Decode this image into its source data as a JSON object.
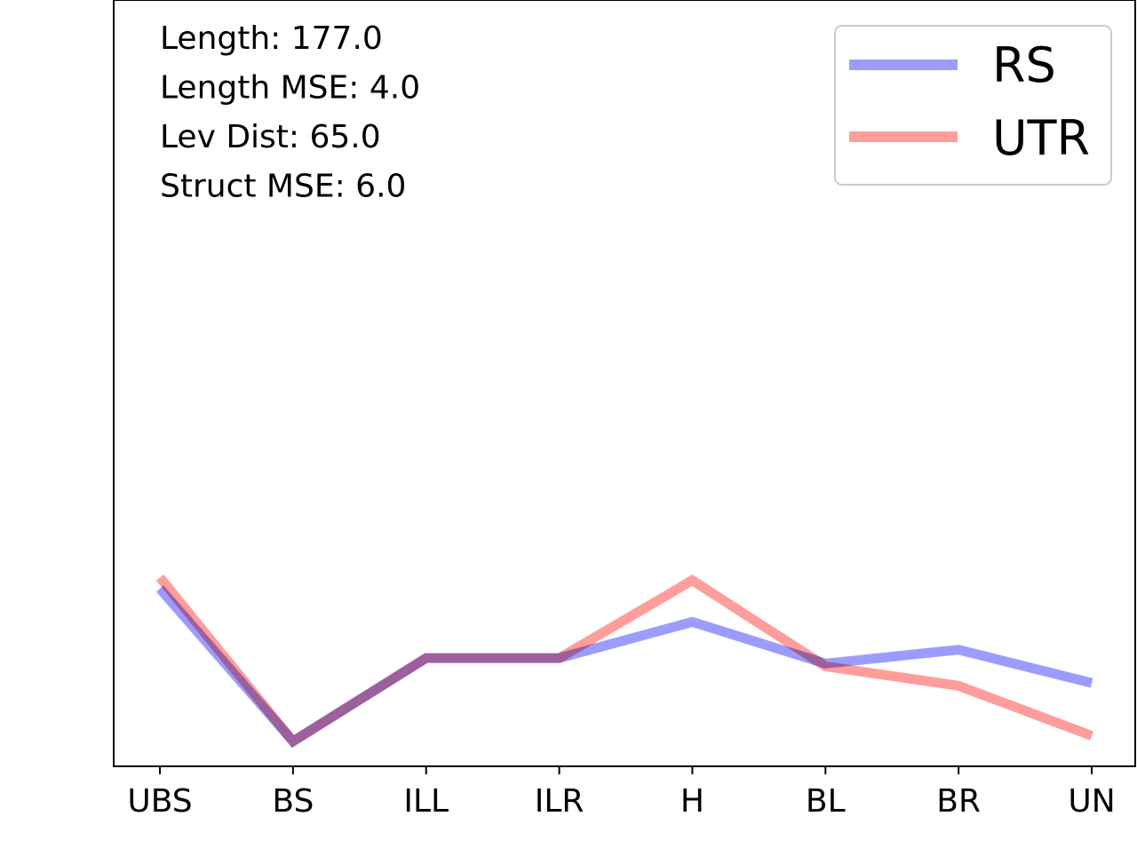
{
  "chart_data": {
    "type": "line",
    "categories": [
      "UBS",
      "BS",
      "ILL",
      "ILR",
      "H",
      "BL",
      "BR",
      "UN"
    ],
    "series": [
      {
        "name": "RS",
        "color": "#9999ff",
        "values": [
          5.5,
          0.0,
          3.0,
          3.0,
          4.3,
          2.8,
          3.3,
          2.1
        ]
      },
      {
        "name": "UTR",
        "color": "#ff9999",
        "values": [
          5.9,
          0.0,
          3.0,
          3.0,
          5.8,
          2.7,
          2.0,
          0.2
        ]
      }
    ],
    "annotations": [
      "Length: 177.0",
      "Length MSE: 4.0",
      "Lev Dist: 65.0",
      "Struct MSE: 6.0"
    ],
    "ylim": [
      -0.9,
      26.7
    ],
    "legend_position": "upper-right",
    "grid": false,
    "y_ticks_visible": false,
    "title": "",
    "xlabel": "",
    "ylabel": ""
  }
}
